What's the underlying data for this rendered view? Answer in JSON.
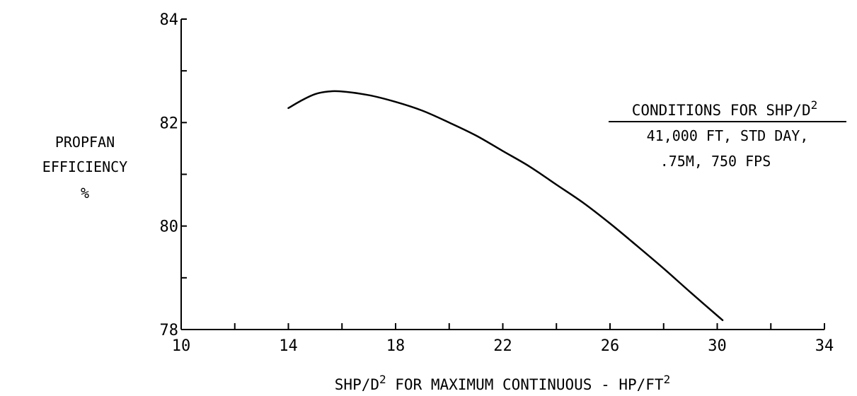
{
  "chart_data": {
    "type": "line",
    "title": "",
    "ylabel_lines": [
      "PROPFAN",
      "EFFICIENCY",
      "%"
    ],
    "xlabel": {
      "part1": "SHP/D",
      "sup1": "2",
      "part2": " FOR MAXIMUM CONTINUOUS - HP/FT",
      "sup2": "2"
    },
    "xlim": [
      10,
      34
    ],
    "ylim": [
      78,
      84
    ],
    "x_ticks": [
      10,
      14,
      18,
      22,
      26,
      30,
      34
    ],
    "x_minor_step": 2,
    "y_ticks": [
      78,
      80,
      82,
      84
    ],
    "y_minor_step": 1,
    "grid": false,
    "legend": "none",
    "annotation": {
      "heading": "CONDITIONS FOR SHP/D",
      "heading_sup": "2",
      "lines": [
        "41,000 FT, STD DAY,",
        ".75M, 750 FPS"
      ],
      "placement": "top-right"
    },
    "series": [
      {
        "x": [
          14.0,
          14.5,
          15.0,
          15.5,
          16.0,
          17.0,
          18.0,
          19.0,
          20.0,
          21.0,
          22.0,
          23.0,
          24.0,
          25.0,
          26.0,
          27.0,
          28.0,
          29.0,
          30.2
        ],
        "y": [
          82.28,
          82.43,
          82.55,
          82.6,
          82.6,
          82.53,
          82.4,
          82.23,
          82.0,
          81.75,
          81.45,
          81.15,
          80.8,
          80.45,
          80.05,
          79.62,
          79.18,
          78.72,
          78.18
        ],
        "color": "#000000"
      }
    ]
  }
}
